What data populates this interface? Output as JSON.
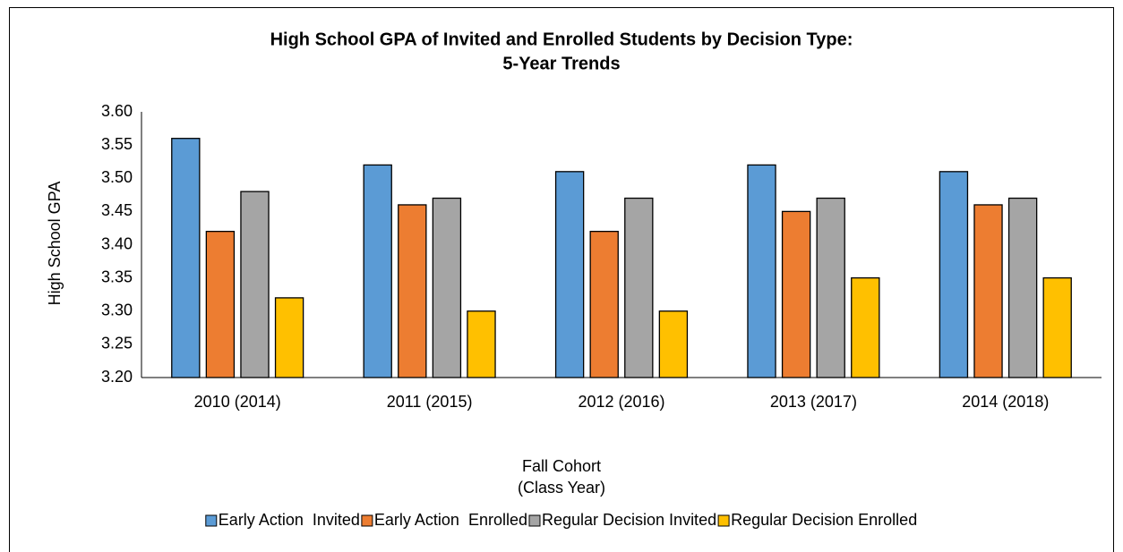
{
  "chart_data": {
    "type": "bar",
    "title": [
      "High School GPA of Invited and Enrolled Students by Decision Type:",
      "5-Year Trends"
    ],
    "ylabel": "High School GPA",
    "xlabel": [
      "Fall Cohort",
      "(Class Year)"
    ],
    "categories": [
      "2010 (2014)",
      "2011 (2015)",
      "2012 (2016)",
      "2013 (2017)",
      "2014 (2018)"
    ],
    "series": [
      {
        "name": "Early Action  Invited",
        "color": "#5b9bd5",
        "values": [
          3.56,
          3.52,
          3.51,
          3.52,
          3.51
        ]
      },
      {
        "name": "Early Action  Enrolled",
        "color": "#ed7d31",
        "values": [
          3.42,
          3.46,
          3.42,
          3.45,
          3.46
        ]
      },
      {
        "name": "Regular Decision Invited",
        "color": "#a5a5a5",
        "values": [
          3.48,
          3.47,
          3.47,
          3.47,
          3.47
        ]
      },
      {
        "name": "Regular Decision Enrolled",
        "color": "#ffc000",
        "values": [
          3.32,
          3.3,
          3.3,
          3.35,
          3.35
        ]
      }
    ],
    "ylim": [
      3.2,
      3.6
    ],
    "yticks": [
      {
        "value": 3.2,
        "label": "3.20"
      },
      3.25,
      {
        "value": 3.3,
        "label": "3.30"
      },
      3.35,
      {
        "value": 3.4,
        "label": "3.40"
      },
      3.45,
      {
        "value": 3.5,
        "label": "3.50"
      },
      3.55,
      {
        "value": 3.6,
        "label": "3.60"
      }
    ],
    "grid": false,
    "legend": "bottom"
  }
}
